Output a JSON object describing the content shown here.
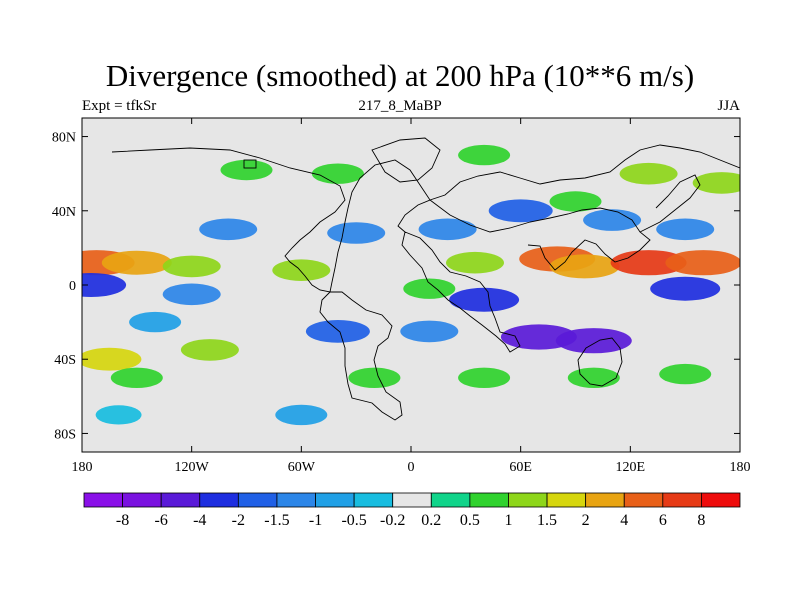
{
  "chart_data": {
    "type": "heatmap",
    "title": "Divergence (smoothed) at 200 hPa (10**6 m/s)",
    "left_label": "Expt = tfkSr",
    "center_label": "217_8_MaBP",
    "right_label": "JJA",
    "x_ticks": [
      {
        "value": -180,
        "label": "180"
      },
      {
        "value": -120,
        "label": "120W"
      },
      {
        "value": -60,
        "label": "60W"
      },
      {
        "value": 0,
        "label": "0"
      },
      {
        "value": 60,
        "label": "60E"
      },
      {
        "value": 120,
        "label": "120E"
      },
      {
        "value": 180,
        "label": "180"
      }
    ],
    "y_ticks": [
      {
        "value": 80,
        "label": "80N"
      },
      {
        "value": 40,
        "label": "40N"
      },
      {
        "value": 0,
        "label": "0"
      },
      {
        "value": -40,
        "label": "40S"
      },
      {
        "value": -80,
        "label": "80S"
      }
    ],
    "xlim": [
      -180,
      180
    ],
    "ylim": [
      -90,
      90
    ],
    "colorbar": {
      "levels": [
        "-8",
        "-6",
        "-4",
        "-2",
        "-1.5",
        "-1",
        "-0.5",
        "-0.2",
        "0.2",
        "0.5",
        "1",
        "1.5",
        "2",
        "4",
        "6",
        "8"
      ],
      "colors": [
        "#8a10e8",
        "#7a12e0",
        "#5a1ad8",
        "#1e2ee0",
        "#2060e6",
        "#2c86e8",
        "#20a0e6",
        "#18bde0",
        "#e6e6e6",
        "#10d48a",
        "#30d22e",
        "#8ed61a",
        "#d6d60e",
        "#e8a412",
        "#e86018",
        "#e63a16",
        "#ee0c0c"
      ]
    },
    "features": [
      {
        "lon": -172,
        "lat": 12,
        "level": 14
      },
      {
        "lon": -150,
        "lat": 12,
        "level": 13
      },
      {
        "lon": -120,
        "lat": 10,
        "level": 11
      },
      {
        "lon": -60,
        "lat": 8,
        "level": 11
      },
      {
        "lon": 80,
        "lat": 14,
        "level": 14
      },
      {
        "lon": 95,
        "lat": 10,
        "level": 13
      },
      {
        "lon": 130,
        "lat": 12,
        "level": 15
      },
      {
        "lon": 160,
        "lat": 12,
        "level": 14
      },
      {
        "lon": 35,
        "lat": 12,
        "level": 11
      },
      {
        "lon": 10,
        "lat": -2,
        "level": 10
      },
      {
        "lon": -165,
        "lat": -40,
        "level": 12
      },
      {
        "lon": -150,
        "lat": -50,
        "level": 10
      },
      {
        "lon": -110,
        "lat": -35,
        "level": 11
      },
      {
        "lon": -20,
        "lat": -50,
        "level": 10
      },
      {
        "lon": 40,
        "lat": -50,
        "level": 10
      },
      {
        "lon": 100,
        "lat": -50,
        "level": 10
      },
      {
        "lon": 150,
        "lat": -48,
        "level": 10
      },
      {
        "lon": -90,
        "lat": 62,
        "level": 10
      },
      {
        "lon": -40,
        "lat": 60,
        "level": 10
      },
      {
        "lon": 40,
        "lat": 70,
        "level": 10
      },
      {
        "lon": 90,
        "lat": 45,
        "level": 10
      },
      {
        "lon": 130,
        "lat": 60,
        "level": 11
      },
      {
        "lon": 170,
        "lat": 55,
        "level": 11
      },
      {
        "lon": -175,
        "lat": 0,
        "level": 3
      },
      {
        "lon": -120,
        "lat": -5,
        "level": 5
      },
      {
        "lon": 40,
        "lat": -8,
        "level": 3
      },
      {
        "lon": 70,
        "lat": -28,
        "level": 2
      },
      {
        "lon": 100,
        "lat": -30,
        "level": 2
      },
      {
        "lon": 150,
        "lat": -2,
        "level": 3
      },
      {
        "lon": -100,
        "lat": 30,
        "level": 5
      },
      {
        "lon": -30,
        "lat": 28,
        "level": 5
      },
      {
        "lon": 20,
        "lat": 30,
        "level": 5
      },
      {
        "lon": 60,
        "lat": 40,
        "level": 4
      },
      {
        "lon": 110,
        "lat": 35,
        "level": 5
      },
      {
        "lon": -140,
        "lat": -20,
        "level": 6
      },
      {
        "lon": -40,
        "lat": -25,
        "level": 4
      },
      {
        "lon": 10,
        "lat": -25,
        "level": 5
      },
      {
        "lon": -160,
        "lat": -70,
        "level": 7
      },
      {
        "lon": -60,
        "lat": -70,
        "level": 6
      },
      {
        "lon": 150,
        "lat": 30,
        "level": 5
      }
    ]
  }
}
